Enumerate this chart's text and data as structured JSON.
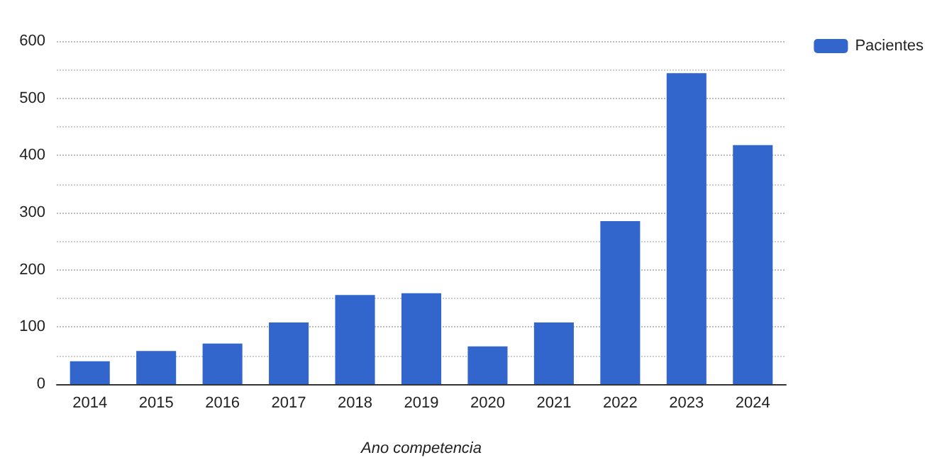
{
  "chart_data": {
    "type": "bar",
    "xlabel": "Ano competencia",
    "categories": [
      "2014",
      "2015",
      "2016",
      "2017",
      "2018",
      "2019",
      "2020",
      "2021",
      "2022",
      "2023",
      "2024"
    ],
    "series": [
      {
        "name": "Pacientes",
        "color": "#3366cc",
        "values": [
          40,
          58,
          71,
          108,
          156,
          159,
          66,
          108,
          285,
          544,
          418
        ]
      }
    ],
    "ylim": [
      0,
      600
    ],
    "yticks": [
      0,
      100,
      200,
      300,
      400,
      500,
      600
    ],
    "grid": "y",
    "legend": "top right"
  }
}
